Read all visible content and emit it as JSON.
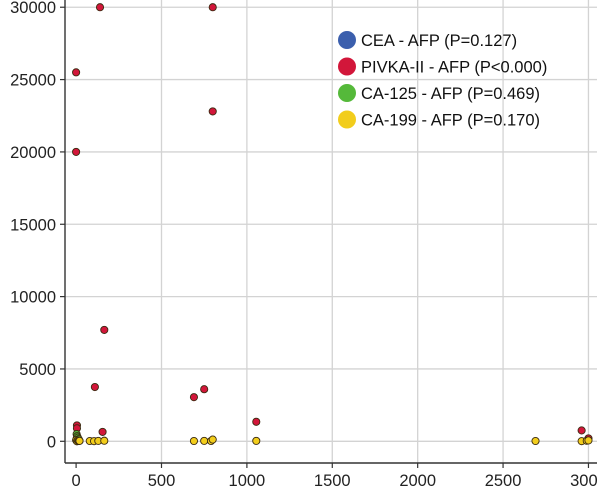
{
  "chart_data": {
    "type": "scatter",
    "title": "",
    "xlabel": "",
    "ylabel": "",
    "xlim": [
      -65,
      3050
    ],
    "ylim": [
      -1500,
      30500
    ],
    "grid": true,
    "legend_position": "top-right",
    "x_ticks": [
      0,
      500,
      1000,
      1500,
      2000,
      2500,
      3000
    ],
    "y_ticks": [
      0,
      5000,
      10000,
      15000,
      20000,
      25000,
      30000
    ],
    "x_tick_labels": [
      "0",
      "500",
      "1000",
      "1500",
      "2000",
      "2500",
      "3000"
    ],
    "y_tick_labels": [
      "0",
      "5000",
      "10000",
      "15000",
      "20000",
      "25000",
      "30000"
    ],
    "series": [
      {
        "name": "CEA - AFP  (P=0.127)",
        "color": "#3b5fad",
        "points": [
          [
            2,
            150
          ],
          [
            5,
            80
          ],
          [
            8,
            300
          ],
          [
            12,
            60
          ],
          [
            20,
            40
          ]
        ]
      },
      {
        "name": "PIVKA-II - AFP (P<0.000)",
        "color": "#d2163a",
        "points": [
          [
            140,
            30000
          ],
          [
            800,
            30000
          ],
          [
            0,
            25500
          ],
          [
            800,
            22800
          ],
          [
            0,
            20000
          ],
          [
            165,
            7700
          ],
          [
            110,
            3750
          ],
          [
            750,
            3600
          ],
          [
            690,
            3050
          ],
          [
            1055,
            1350
          ],
          [
            5,
            1100
          ],
          [
            5,
            900
          ],
          [
            155,
            650
          ],
          [
            2960,
            750
          ],
          [
            3000,
            200
          ]
        ]
      },
      {
        "name": "CA-125 - AFP (P=0.469)",
        "color": "#55b93a",
        "points": [
          [
            3,
            500
          ],
          [
            6,
            350
          ],
          [
            10,
            250
          ],
          [
            15,
            150
          ]
        ]
      },
      {
        "name": "CA-199 - AFP (P=0.170)",
        "color": "#f2cd1c",
        "points": [
          [
            0,
            80
          ],
          [
            5,
            0
          ],
          [
            10,
            60
          ],
          [
            15,
            20
          ],
          [
            20,
            30
          ],
          [
            80,
            20
          ],
          [
            105,
            10
          ],
          [
            130,
            30
          ],
          [
            165,
            40
          ],
          [
            690,
            20
          ],
          [
            750,
            30
          ],
          [
            790,
            20
          ],
          [
            800,
            120
          ],
          [
            1055,
            30
          ],
          [
            2690,
            20
          ],
          [
            2960,
            10
          ],
          [
            2990,
            40
          ],
          [
            3000,
            60
          ]
        ]
      }
    ]
  }
}
